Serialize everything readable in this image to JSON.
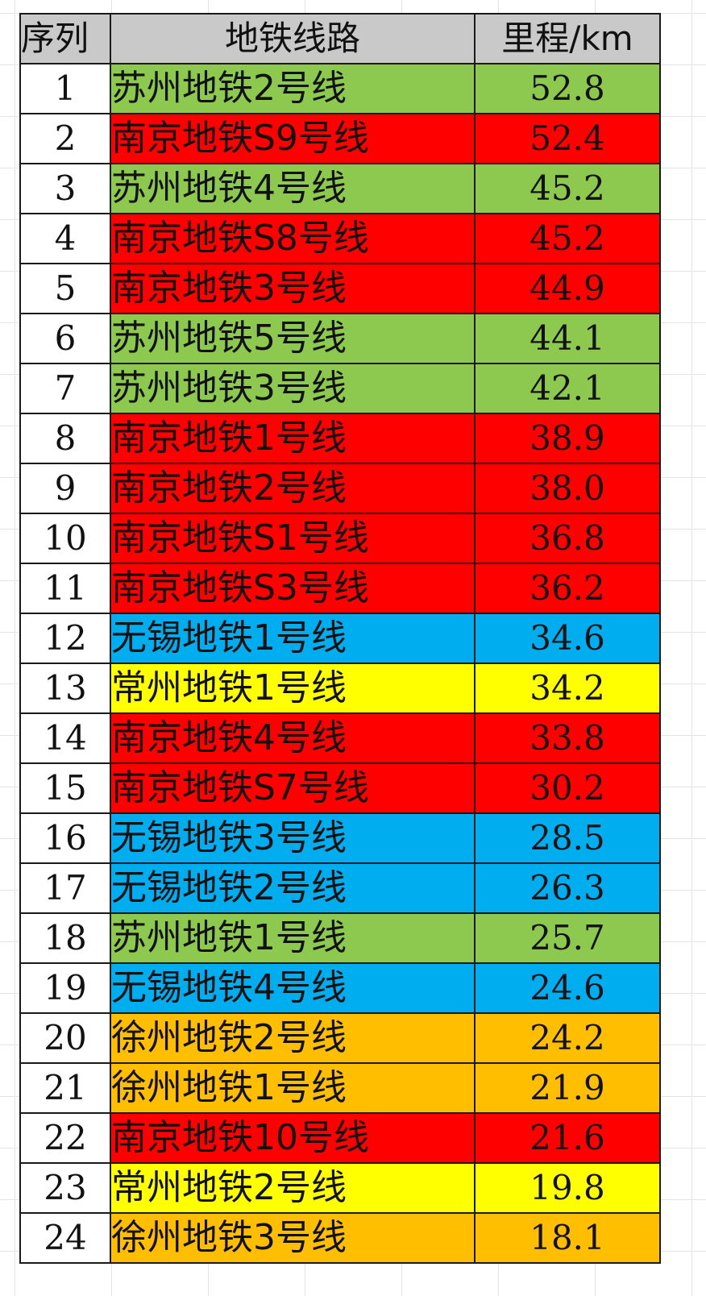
{
  "header": {
    "index": "序列",
    "line": "地铁线路",
    "length": "里程/km"
  },
  "city_colors": {
    "苏州": "#8dc94e",
    "南京": "#fe0000",
    "无锡": "#00aeef",
    "常州": "#ffff00",
    "徐州": "#ffbf00"
  },
  "rows": [
    {
      "index": "1",
      "line": "苏州地铁2号线",
      "length": "52.8",
      "color": "#8dc94e"
    },
    {
      "index": "2",
      "line": "南京地铁S9号线",
      "length": "52.4",
      "color": "#fe0000"
    },
    {
      "index": "3",
      "line": "苏州地铁4号线",
      "length": "45.2",
      "color": "#8dc94e"
    },
    {
      "index": "4",
      "line": "南京地铁S8号线",
      "length": "45.2",
      "color": "#fe0000"
    },
    {
      "index": "5",
      "line": "南京地铁3号线",
      "length": "44.9",
      "color": "#fe0000"
    },
    {
      "index": "6",
      "line": "苏州地铁5号线",
      "length": "44.1",
      "color": "#8dc94e"
    },
    {
      "index": "7",
      "line": "苏州地铁3号线",
      "length": "42.1",
      "color": "#8dc94e"
    },
    {
      "index": "8",
      "line": "南京地铁1号线",
      "length": "38.9",
      "color": "#fe0000"
    },
    {
      "index": "9",
      "line": "南京地铁2号线",
      "length": "38.0",
      "color": "#fe0000"
    },
    {
      "index": "10",
      "line": "南京地铁S1号线",
      "length": "36.8",
      "color": "#fe0000"
    },
    {
      "index": "11",
      "line": "南京地铁S3号线",
      "length": "36.2",
      "color": "#fe0000"
    },
    {
      "index": "12",
      "line": "无锡地铁1号线",
      "length": "34.6",
      "color": "#00aeef"
    },
    {
      "index": "13",
      "line": "常州地铁1号线",
      "length": "34.2",
      "color": "#ffff00"
    },
    {
      "index": "14",
      "line": "南京地铁4号线",
      "length": "33.8",
      "color": "#fe0000"
    },
    {
      "index": "15",
      "line": "南京地铁S7号线",
      "length": "30.2",
      "color": "#fe0000"
    },
    {
      "index": "16",
      "line": "无锡地铁3号线",
      "length": "28.5",
      "color": "#00aeef"
    },
    {
      "index": "17",
      "line": "无锡地铁2号线",
      "length": "26.3",
      "color": "#00aeef"
    },
    {
      "index": "18",
      "line": "苏州地铁1号线",
      "length": "25.7",
      "color": "#8dc94e"
    },
    {
      "index": "19",
      "line": "无锡地铁4号线",
      "length": "24.6",
      "color": "#00aeef"
    },
    {
      "index": "20",
      "line": "徐州地铁2号线",
      "length": "24.2",
      "color": "#ffbf00"
    },
    {
      "index": "21",
      "line": "徐州地铁1号线",
      "length": "21.9",
      "color": "#ffbf00"
    },
    {
      "index": "22",
      "line": "南京地铁10号线",
      "length": "21.6",
      "color": "#fe0000"
    },
    {
      "index": "23",
      "line": "常州地铁2号线",
      "length": "19.8",
      "color": "#ffff00"
    },
    {
      "index": "24",
      "line": "徐州地铁3号线",
      "length": "18.1",
      "color": "#ffbf00"
    }
  ]
}
